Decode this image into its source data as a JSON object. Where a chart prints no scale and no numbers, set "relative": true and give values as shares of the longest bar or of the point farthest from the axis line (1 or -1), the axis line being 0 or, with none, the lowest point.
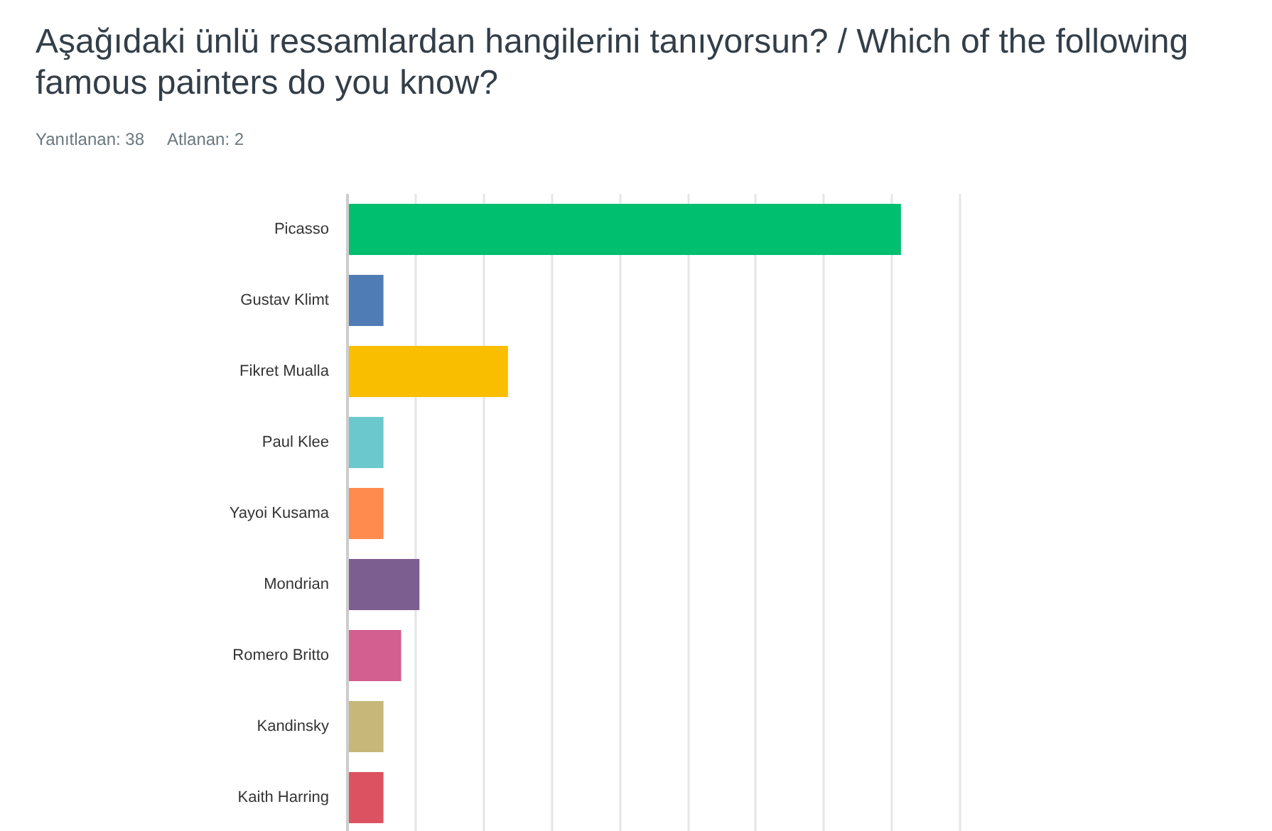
{
  "chart_data": {
    "type": "bar",
    "orientation": "horizontal",
    "relative": true,
    "title": "Aşağıdaki ünlü ressamlardan hangilerini tanıyorsun? / Which of the following famous painters do you know?",
    "subtitle": "Yanıtlanan: 38",
    "annotations": [
      "Atlanan: 2"
    ],
    "categories": [
      "Picasso",
      "Gustav Klimt",
      "Fikret Mualla",
      "Paul Klee",
      "Yayoi Kusama",
      "Mondrian",
      "Romero Britto",
      "Kandinsky",
      "Kaith Harring"
    ],
    "values": [
      1,
      0.065,
      0.29,
      0.065,
      0.065,
      0.13,
      0.097,
      0.065,
      0.065
    ],
    "colors": [
      "#00bf6f",
      "#507cb6",
      "#f9be00",
      "#6bc8cd",
      "#ff8b4f",
      "#7d5e90",
      "#d25f90",
      "#c7b879",
      "#dc5260"
    ],
    "grid": "x"
  }
}
